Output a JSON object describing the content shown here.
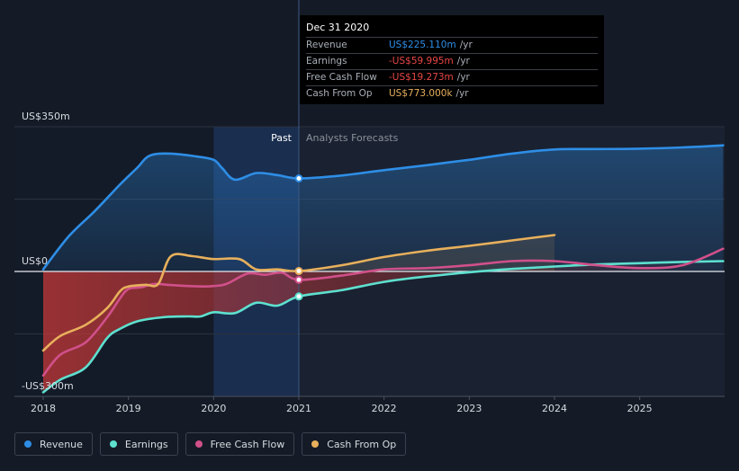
{
  "tooltip": {
    "date": "Dec 31 2020",
    "rows": [
      {
        "label": "Revenue",
        "value": "US$225.110m",
        "unit": "/yr",
        "color": "#2e8ee6"
      },
      {
        "label": "Earnings",
        "value": "-US$59.995m",
        "unit": "/yr",
        "color": "#e84646"
      },
      {
        "label": "Free Cash Flow",
        "value": "-US$19.273m",
        "unit": "/yr",
        "color": "#e84646"
      },
      {
        "label": "Cash From Op",
        "value": "US$773.000k",
        "unit": "/yr",
        "color": "#e8b05c"
      }
    ]
  },
  "regions": {
    "past": "Past",
    "forecast": "Analysts Forecasts"
  },
  "legend": [
    {
      "label": "Revenue",
      "color": "#2e8ee6"
    },
    {
      "label": "Earnings",
      "color": "#5ee0cf"
    },
    {
      "label": "Free Cash Flow",
      "color": "#d0508a"
    },
    {
      "label": "Cash From Op",
      "color": "#e8b05c"
    }
  ],
  "chart_data": {
    "type": "line",
    "title": "",
    "y_unit": "US$m",
    "ylim": [
      -300,
      350
    ],
    "y_tick_labels": [
      {
        "value": 350,
        "label": "US$350m"
      },
      {
        "value": 0,
        "label": "US$0"
      },
      {
        "value": -300,
        "label": "-US$300m"
      }
    ],
    "x_tick_labels": [
      {
        "value": 2018,
        "label": "2018"
      },
      {
        "value": 2019,
        "label": "2019"
      },
      {
        "value": 2020,
        "label": "2020"
      },
      {
        "value": 2021,
        "label": "2021"
      },
      {
        "value": 2022,
        "label": "2022"
      },
      {
        "value": 2023,
        "label": "2023"
      },
      {
        "value": 2024,
        "label": "2024"
      },
      {
        "value": 2025,
        "label": "2025"
      }
    ],
    "xlim": [
      2017.7,
      2025.98
    ],
    "past_range": [
      2020.0,
      2021.0
    ],
    "highlight_x": 2021.0,
    "series": [
      {
        "name": "Revenue",
        "color": "#2e8ee6",
        "points": [
          [
            2018.0,
            5
          ],
          [
            2018.3,
            85
          ],
          [
            2018.6,
            145
          ],
          [
            2018.9,
            210
          ],
          [
            2019.1,
            250
          ],
          [
            2019.25,
            280
          ],
          [
            2019.5,
            285
          ],
          [
            2019.8,
            278
          ],
          [
            2020.0,
            270
          ],
          [
            2020.1,
            250
          ],
          [
            2020.25,
            222
          ],
          [
            2020.5,
            238
          ],
          [
            2020.75,
            233
          ],
          [
            2021.0,
            225
          ],
          [
            2021.5,
            232
          ],
          [
            2022.0,
            245
          ],
          [
            2022.5,
            257
          ],
          [
            2023.0,
            270
          ],
          [
            2023.5,
            285
          ],
          [
            2024.0,
            295
          ],
          [
            2024.5,
            296
          ],
          [
            2025.0,
            297
          ],
          [
            2025.5,
            300
          ],
          [
            2025.98,
            305
          ]
        ]
      },
      {
        "name": "Earnings",
        "color": "#5ee0cf",
        "points": [
          [
            2018.0,
            -290
          ],
          [
            2018.2,
            -260
          ],
          [
            2018.5,
            -230
          ],
          [
            2018.75,
            -160
          ],
          [
            2018.9,
            -138
          ],
          [
            2019.1,
            -120
          ],
          [
            2019.4,
            -110
          ],
          [
            2019.7,
            -108
          ],
          [
            2019.85,
            -108
          ],
          [
            2020.0,
            -98
          ],
          [
            2020.25,
            -100
          ],
          [
            2020.5,
            -75
          ],
          [
            2020.75,
            -82
          ],
          [
            2021.0,
            -60
          ],
          [
            2021.5,
            -45
          ],
          [
            2022.0,
            -25
          ],
          [
            2022.5,
            -12
          ],
          [
            2023.0,
            -2
          ],
          [
            2023.5,
            6
          ],
          [
            2024.0,
            12
          ],
          [
            2024.5,
            17
          ],
          [
            2025.0,
            20
          ],
          [
            2025.5,
            23
          ],
          [
            2025.98,
            25
          ]
        ]
      },
      {
        "name": "Free Cash Flow",
        "color": "#d0508a",
        "points": [
          [
            2018.0,
            -250
          ],
          [
            2018.2,
            -200
          ],
          [
            2018.5,
            -170
          ],
          [
            2018.75,
            -110
          ],
          [
            2018.9,
            -65
          ],
          [
            2019.0,
            -42
          ],
          [
            2019.15,
            -38
          ],
          [
            2019.3,
            -30
          ],
          [
            2019.45,
            -32
          ],
          [
            2019.7,
            -35
          ],
          [
            2019.9,
            -36
          ],
          [
            2020.0,
            -35
          ],
          [
            2020.15,
            -30
          ],
          [
            2020.4,
            -5
          ],
          [
            2020.6,
            -8
          ],
          [
            2020.8,
            -3
          ],
          [
            2021.0,
            -20
          ],
          [
            2021.5,
            -10
          ],
          [
            2022.0,
            5
          ],
          [
            2022.5,
            8
          ],
          [
            2023.0,
            15
          ],
          [
            2023.5,
            25
          ],
          [
            2024.0,
            25
          ],
          [
            2024.5,
            15
          ],
          [
            2025.0,
            8
          ],
          [
            2025.5,
            15
          ],
          [
            2025.98,
            55
          ]
        ]
      },
      {
        "name": "Cash From Op",
        "color": "#e8b05c",
        "points": [
          [
            2018.0,
            -190
          ],
          [
            2018.2,
            -155
          ],
          [
            2018.5,
            -128
          ],
          [
            2018.75,
            -88
          ],
          [
            2018.9,
            -48
          ],
          [
            2019.0,
            -36
          ],
          [
            2019.2,
            -32
          ],
          [
            2019.35,
            -30
          ],
          [
            2019.5,
            37
          ],
          [
            2019.75,
            37
          ],
          [
            2020.0,
            30
          ],
          [
            2020.3,
            30
          ],
          [
            2020.5,
            5
          ],
          [
            2020.75,
            5
          ],
          [
            2021.0,
            1
          ],
          [
            2021.5,
            15
          ],
          [
            2022.0,
            35
          ],
          [
            2022.5,
            50
          ],
          [
            2023.0,
            62
          ],
          [
            2023.5,
            75
          ],
          [
            2024.0,
            88
          ]
        ]
      }
    ]
  }
}
